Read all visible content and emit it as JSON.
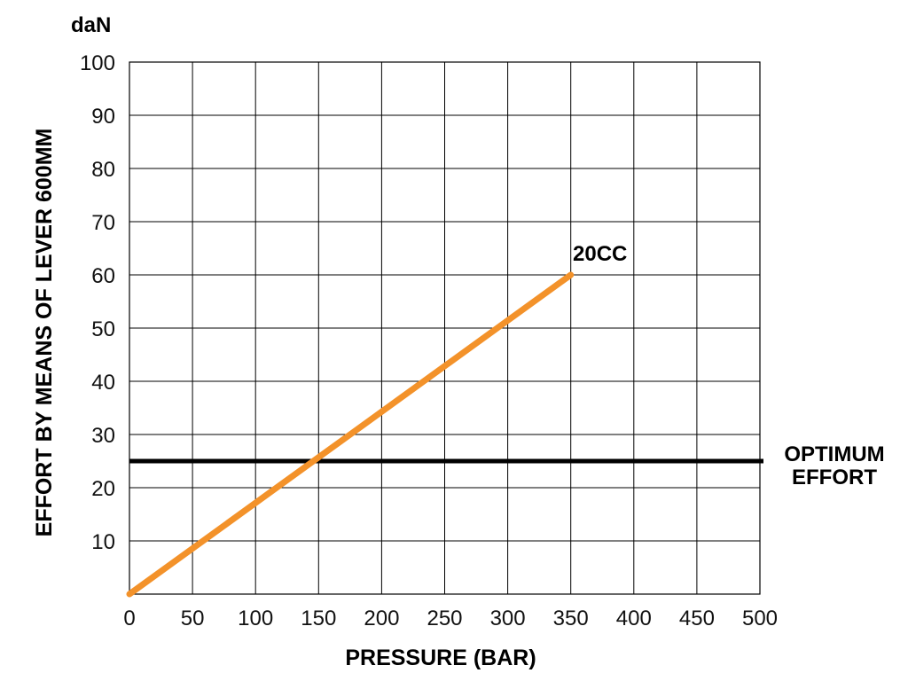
{
  "chart_data": {
    "type": "line",
    "unit_label": "daN",
    "xlabel": "PRESSURE (BAR)",
    "ylabel": "EFFORT BY MEANS OF LEVER 600MM",
    "xlim": [
      0,
      500
    ],
    "ylim": [
      0,
      100
    ],
    "x_ticks": [
      0,
      50,
      100,
      150,
      200,
      250,
      300,
      350,
      400,
      450,
      500
    ],
    "y_ticks": [
      10,
      20,
      30,
      40,
      50,
      60,
      70,
      80,
      90,
      100
    ],
    "grid": true,
    "series": [
      {
        "name": "20CC",
        "color": "#f3922a",
        "x": [
          0,
          350
        ],
        "y": [
          0,
          60
        ]
      }
    ],
    "reference_line": {
      "label_lines": [
        "OPTIMUM",
        "EFFORT"
      ],
      "y": 25,
      "color": "#000000"
    }
  }
}
